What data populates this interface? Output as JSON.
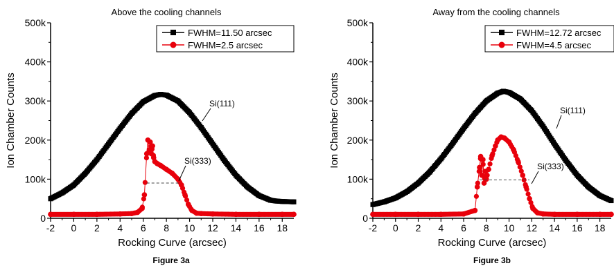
{
  "colors": {
    "black_series": "#000000",
    "red_series": "#e8000b",
    "dash": "#444444"
  },
  "chart_data": [
    {
      "type": "scatter",
      "title": "Above the cooling channels",
      "caption": "Figure 3a",
      "xlabel": "Rocking Curve (arcsec)",
      "ylabel": "Ion Chamber Counts",
      "xlim": [
        -2,
        19
      ],
      "ylim": [
        0,
        500000
      ],
      "xticks": [
        -2,
        0,
        2,
        4,
        6,
        8,
        10,
        12,
        14,
        16,
        18
      ],
      "yticks": [
        0,
        100000,
        200000,
        300000,
        400000,
        500000
      ],
      "ytick_labels": [
        "0",
        "100k",
        "200k",
        "300k",
        "400k",
        "500k"
      ],
      "grid": false,
      "legend_position": "top-right",
      "series": [
        {
          "name": "FWHM=11.50 arcsec",
          "color": "#000000",
          "marker": "square",
          "label": "Si(111)",
          "x": [
            -2,
            -1,
            0,
            1,
            2,
            3,
            4,
            5,
            6,
            7,
            7.5,
            8,
            9,
            10,
            11,
            12,
            13,
            14,
            15,
            16,
            17,
            17.5,
            18,
            19
          ],
          "y": [
            50000,
            65000,
            85000,
            115000,
            150000,
            190000,
            230000,
            268000,
            298000,
            314000,
            317000,
            315000,
            300000,
            270000,
            232000,
            190000,
            148000,
            110000,
            80000,
            58000,
            46000,
            44000,
            43000,
            42000
          ]
        },
        {
          "name": "FWHM=2.5 arcsec",
          "color": "#e8000b",
          "marker": "circle",
          "label": "Si(333)",
          "x": [
            -2,
            0,
            2,
            4,
            5,
            5.5,
            5.9,
            6.1,
            6.3,
            6.4,
            6.5,
            6.6,
            6.7,
            6.8,
            6.9,
            7.0,
            7.2,
            7.5,
            8.0,
            8.5,
            9.0,
            9.3,
            9.6,
            9.9,
            10.2,
            10.6,
            11,
            12,
            14,
            16,
            18,
            19
          ],
          "y": [
            10000,
            10000,
            10000,
            11000,
            12000,
            15000,
            25000,
            60000,
            165000,
            200000,
            170000,
            195000,
            165000,
            185000,
            155000,
            145000,
            140000,
            135000,
            125000,
            115000,
            100000,
            85000,
            60000,
            35000,
            20000,
            13000,
            12000,
            11000,
            10000,
            10000,
            10000,
            10000
          ]
        }
      ],
      "fwhm_line": {
        "x1": 6.3,
        "x2": 9.2,
        "y": 90000
      }
    },
    {
      "type": "scatter",
      "title": "Away from the cooling channels",
      "caption": "Figure 3b",
      "xlabel": "Rocking Curve (arcsec)",
      "ylabel": "Ion Chamber Counts",
      "xlim": [
        -2,
        19
      ],
      "ylim": [
        0,
        500000
      ],
      "xticks": [
        -2,
        0,
        2,
        4,
        6,
        8,
        10,
        12,
        14,
        16,
        18
      ],
      "yticks": [
        0,
        100000,
        200000,
        300000,
        400000,
        500000
      ],
      "ytick_labels": [
        "0",
        "100k",
        "200k",
        "300k",
        "400k",
        "500k"
      ],
      "grid": false,
      "legend_position": "top-right",
      "series": [
        {
          "name": "FWHM=12.72 arcsec",
          "color": "#000000",
          "marker": "square",
          "label": "Si(111)",
          "x": [
            -2,
            -1,
            0,
            1,
            2,
            3,
            4,
            5,
            6,
            7,
            8,
            9,
            9.5,
            10,
            11,
            12,
            13,
            14,
            15,
            16,
            17,
            18,
            19
          ],
          "y": [
            35000,
            42000,
            52000,
            68000,
            90000,
            118000,
            152000,
            190000,
            230000,
            268000,
            300000,
            320000,
            325000,
            322000,
            305000,
            275000,
            235000,
            190000,
            148000,
            110000,
            80000,
            58000,
            45000
          ]
        },
        {
          "name": "FWHM=4.5 arcsec",
          "color": "#e8000b",
          "marker": "circle",
          "label": "Si(333)",
          "x": [
            -2,
            0,
            2,
            4,
            6,
            7.0,
            7.2,
            7.4,
            7.5,
            7.6,
            7.7,
            7.8,
            7.9,
            8.0,
            8.2,
            8.5,
            8.8,
            9.0,
            9.3,
            9.6,
            10.0,
            10.4,
            10.8,
            11.2,
            11.5,
            11.8,
            12.1,
            12.5,
            13,
            14,
            16,
            18,
            19
          ],
          "y": [
            10000,
            10000,
            10000,
            10000,
            11000,
            20000,
            80000,
            130000,
            158000,
            110000,
            150000,
            90000,
            120000,
            100000,
            125000,
            160000,
            185000,
            200000,
            208000,
            205000,
            195000,
            175000,
            145000,
            110000,
            80000,
            50000,
            25000,
            14000,
            11000,
            10000,
            10000,
            10000,
            10000
          ]
        }
      ],
      "fwhm_line": {
        "x1": 7.4,
        "x2": 11.8,
        "y": 98000
      }
    }
  ]
}
